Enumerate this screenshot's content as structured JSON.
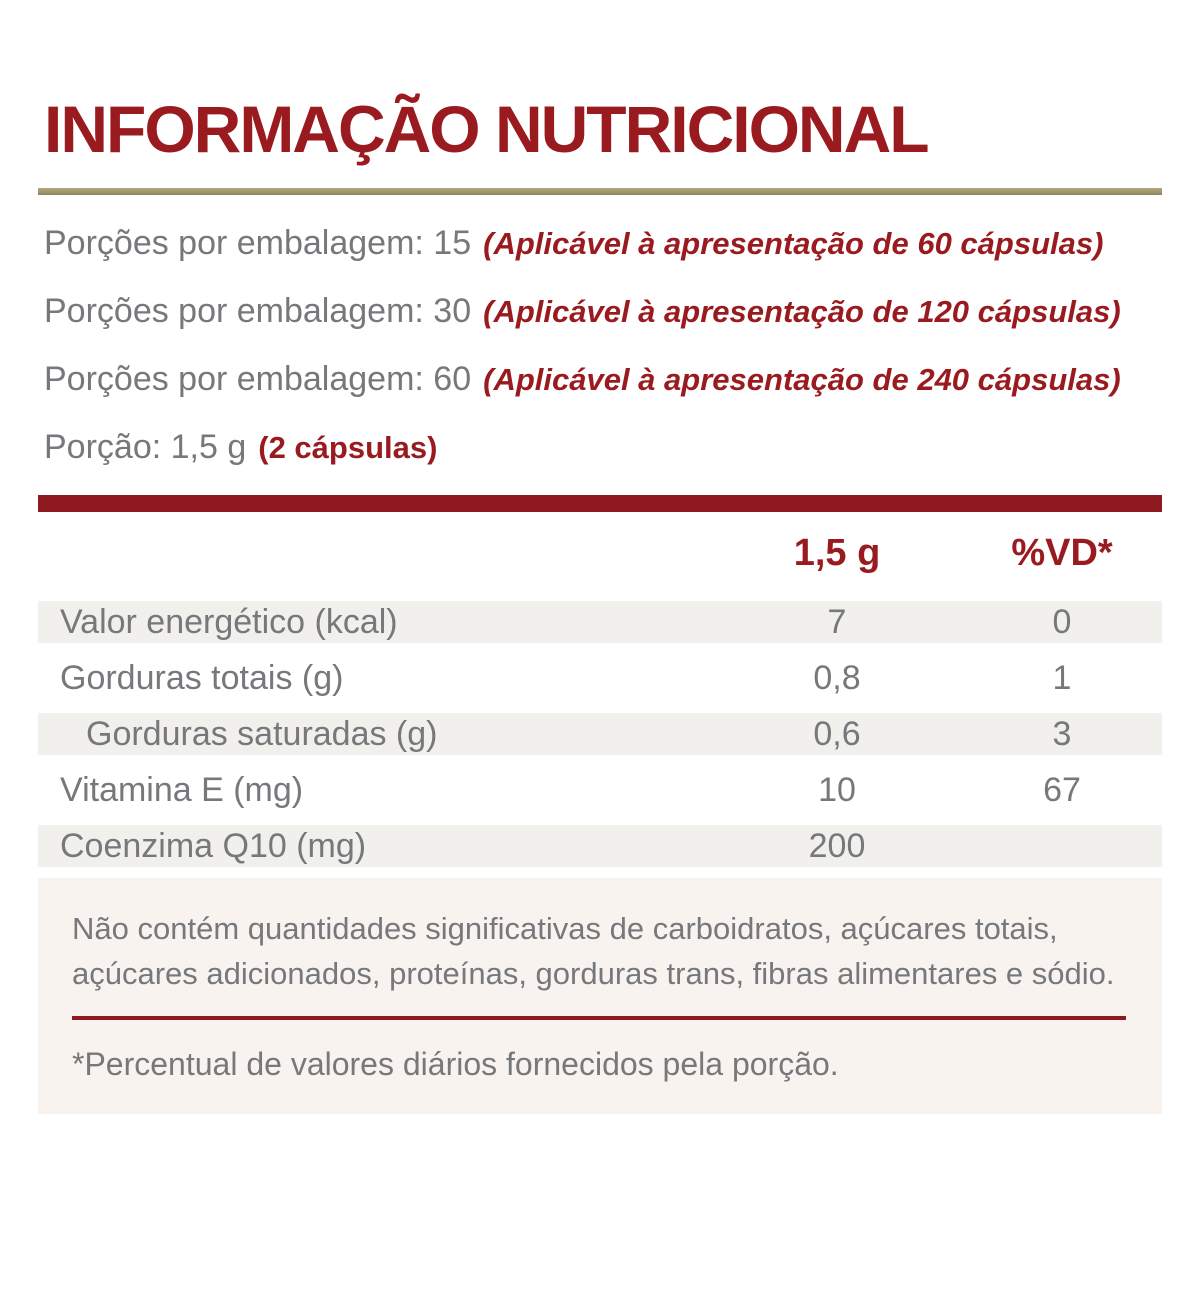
{
  "title": "INFORMAÇÃO NUTRICIONAL",
  "servings": [
    {
      "label": "Porções por embalagem: 15",
      "note": "(Aplicável à apresentação de 60 cápsulas)",
      "note_italic": true
    },
    {
      "label": "Porções por embalagem: 30",
      "note": "(Aplicável à apresentação de 120 cápsulas)",
      "note_italic": true
    },
    {
      "label": "Porções por embalagem: 60",
      "note": "(Aplicável à apresentação de 240 cápsulas)",
      "note_italic": true
    },
    {
      "label": "Porção: 1,5 g",
      "note": "(2 cápsulas)",
      "note_italic": false
    }
  ],
  "table": {
    "header": {
      "amount": "1,5 g",
      "dv": "%VD*"
    },
    "rows": [
      {
        "label": "Valor energético (kcal)",
        "value": "7",
        "vd": "0",
        "indent": false
      },
      {
        "label": "Gorduras totais (g)",
        "value": "0,8",
        "vd": "1",
        "indent": false
      },
      {
        "label": "Gorduras saturadas (g)",
        "value": "0,6",
        "vd": "3",
        "indent": true
      },
      {
        "label": "Vitamina E (mg)",
        "value": "10",
        "vd": "67",
        "indent": false
      },
      {
        "label": "Coenzima Q10 (mg)",
        "value": "200",
        "vd": "",
        "indent": false
      }
    ]
  },
  "footer": {
    "note": "Não contém quantidades significativas de carboidratos, açúcares totais,\naçúcares adicionados, proteínas, gorduras trans, fibras alimentares e sódio.",
    "daily_value_note": "*Percentual de valores diários fornecidos pela porção."
  },
  "colors": {
    "accent_red": "#9A1B1F",
    "bar_red": "#8E1A20",
    "gold_rule": "#9C9166",
    "text_gray": "#77787B",
    "row_shade": "#F2F0EC",
    "footer_bg": "#F8F3EF"
  }
}
